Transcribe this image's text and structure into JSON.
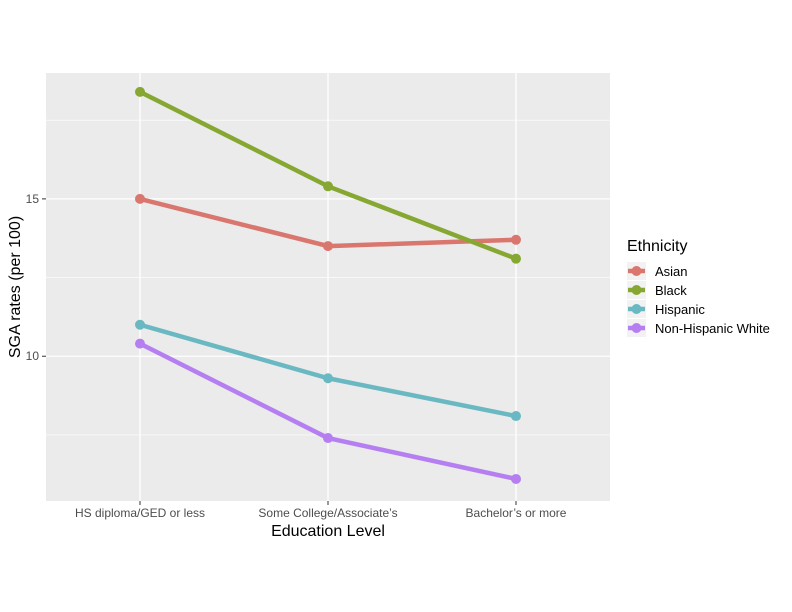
{
  "chart_data": {
    "type": "line",
    "xlabel": "Education Level",
    "ylabel": "SGA rates (per 100)",
    "categories": [
      "HS diploma/GED or less",
      "Some College/Associate’s",
      "Bachelor’s or more"
    ],
    "ylim": [
      5.4,
      19.0
    ],
    "yticks": [
      10,
      15
    ],
    "y_minor_gridlines": [
      7.5,
      12.5,
      17.5
    ],
    "grid": true,
    "legend": {
      "title": "Ethnicity",
      "position": "right"
    },
    "series": [
      {
        "name": "Asian",
        "color": "#d9776f",
        "values": [
          15.0,
          13.5,
          13.7
        ]
      },
      {
        "name": "Black",
        "color": "#86a832",
        "values": [
          18.4,
          15.4,
          13.1
        ]
      },
      {
        "name": "Hispanic",
        "color": "#69b8c2",
        "values": [
          11.0,
          9.3,
          8.1
        ]
      },
      {
        "name": "Non-Hispanic White",
        "color": "#b57ff2",
        "values": [
          10.4,
          7.4,
          6.1
        ]
      }
    ]
  },
  "colors": {
    "panel_background": "#ebebeb",
    "gridline": "#ffffff",
    "tick": "#333333"
  }
}
